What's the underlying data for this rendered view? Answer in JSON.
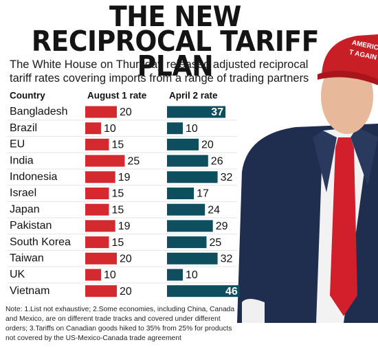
{
  "chart_data": {
    "type": "bar",
    "title": "THE NEW RECIPROCAL TARIFF PLAN",
    "subtitle": "The White House on Thursday released adjusted reciprocal tariff rates covering imports from a range of trading partners",
    "category_header": "Country",
    "categories": [
      "Bangladesh",
      "Brazil",
      "EU",
      "India",
      "Indonesia",
      "Israel",
      "Japan",
      "Pakistan",
      "South Korea",
      "Taiwan",
      "UK",
      "Vietnam"
    ],
    "series": [
      {
        "name": "August 1 rate",
        "color": "#d42a2f",
        "values": [
          20,
          10,
          15,
          25,
          19,
          15,
          15,
          19,
          15,
          20,
          10,
          20
        ]
      },
      {
        "name": "April 2 rate",
        "color": "#0d4f5e",
        "values": [
          37,
          10,
          20,
          26,
          32,
          17,
          24,
          29,
          25,
          32,
          10,
          46
        ]
      }
    ],
    "note": "Note: 1.List not exhaustive; 2.Some economies, including China, Canada and Mexico, are on different trade tracks and covered under different orders; 3.Tariffs on Canadian goods hiked to 35% from 25% for products not covered by the US-Mexico-Canada trade agreement",
    "photo_text": [
      "AMERICA",
      "T AGAIN"
    ]
  }
}
